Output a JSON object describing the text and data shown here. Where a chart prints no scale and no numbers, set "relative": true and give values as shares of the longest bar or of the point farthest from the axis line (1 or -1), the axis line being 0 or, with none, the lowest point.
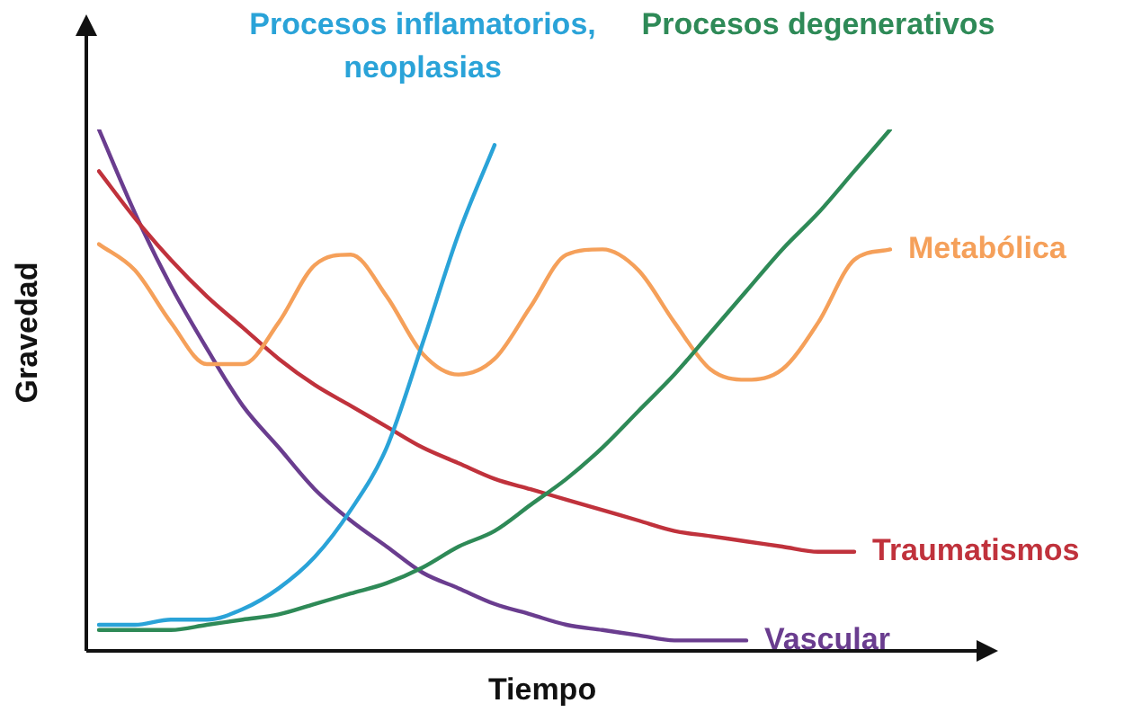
{
  "chart_data": {
    "type": "line",
    "relative": true,
    "xlabel": "Tiempo",
    "ylabel": "Gravedad",
    "legend": false,
    "marker": "none",
    "line_style": "solid",
    "categories": [
      null,
      null,
      null,
      null,
      null,
      null,
      null,
      null,
      null,
      null,
      null,
      null,
      null,
      null,
      null,
      null,
      null,
      null,
      null,
      null,
      null,
      null,
      null
    ],
    "series": [
      {
        "name": "Procesos inflamatorios, neoplasias",
        "color": "#2aa3d8",
        "values": [
          0.05,
          0.05,
          0.06,
          0.06,
          0.08,
          0.12,
          0.18,
          0.27,
          0.39,
          0.59,
          0.8,
          0.97,
          null,
          null,
          null,
          null,
          null,
          null,
          null,
          null,
          null,
          null,
          null
        ]
      },
      {
        "name": "Procesos degenerativos",
        "color": "#2e8a57",
        "values": [
          0.04,
          0.04,
          0.04,
          0.05,
          0.06,
          0.07,
          0.09,
          0.11,
          0.13,
          0.16,
          0.2,
          0.23,
          0.28,
          0.33,
          0.39,
          0.46,
          0.53,
          0.61,
          0.69,
          0.77,
          0.84,
          0.92,
          1.0
        ]
      },
      {
        "name": "Metabólica",
        "color": "#f5a05a",
        "values": [
          0.78,
          0.73,
          0.63,
          0.55,
          0.55,
          0.63,
          0.74,
          0.76,
          0.68,
          0.57,
          0.53,
          0.56,
          0.66,
          0.76,
          0.77,
          0.73,
          0.63,
          0.54,
          0.52,
          0.54,
          0.63,
          0.75,
          0.77
        ]
      },
      {
        "name": "Traumatismos",
        "color": "#c0323c",
        "values": [
          0.92,
          0.83,
          0.75,
          0.68,
          0.62,
          0.56,
          0.51,
          0.47,
          0.43,
          0.39,
          0.36,
          0.33,
          0.31,
          0.29,
          0.27,
          0.25,
          0.23,
          0.22,
          0.21,
          0.2,
          0.19,
          0.19,
          null
        ]
      },
      {
        "name": "Vascular",
        "color": "#6a3d8f",
        "values": [
          1.0,
          0.84,
          0.7,
          0.58,
          0.47,
          0.39,
          0.31,
          0.25,
          0.2,
          0.15,
          0.12,
          0.09,
          0.07,
          0.05,
          0.04,
          0.03,
          0.02,
          0.02,
          0.02,
          null,
          null,
          null,
          null
        ]
      }
    ]
  }
}
